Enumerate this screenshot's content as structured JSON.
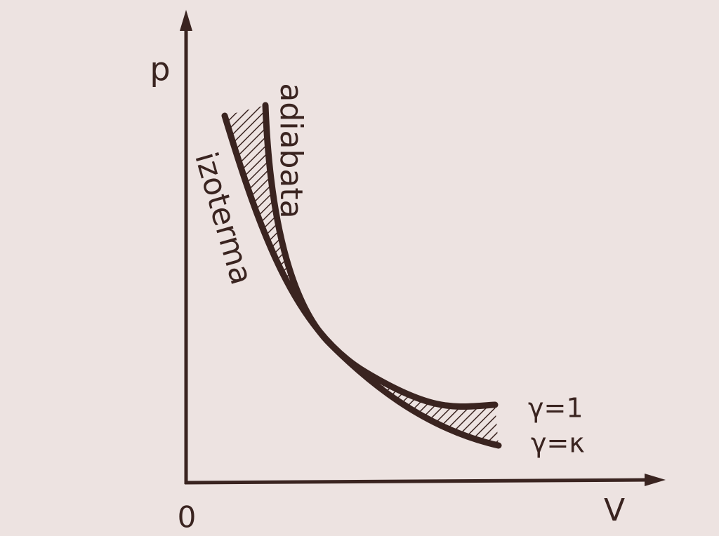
{
  "axes": {
    "y_label": "p",
    "x_label": "V",
    "origin_label": "0"
  },
  "curves": {
    "adiabat_label": "adiabata",
    "isotherm_label": "izoterma"
  },
  "legend": {
    "isotherm_gamma": "γ=1",
    "adiabat_gamma": "γ=κ"
  }
}
